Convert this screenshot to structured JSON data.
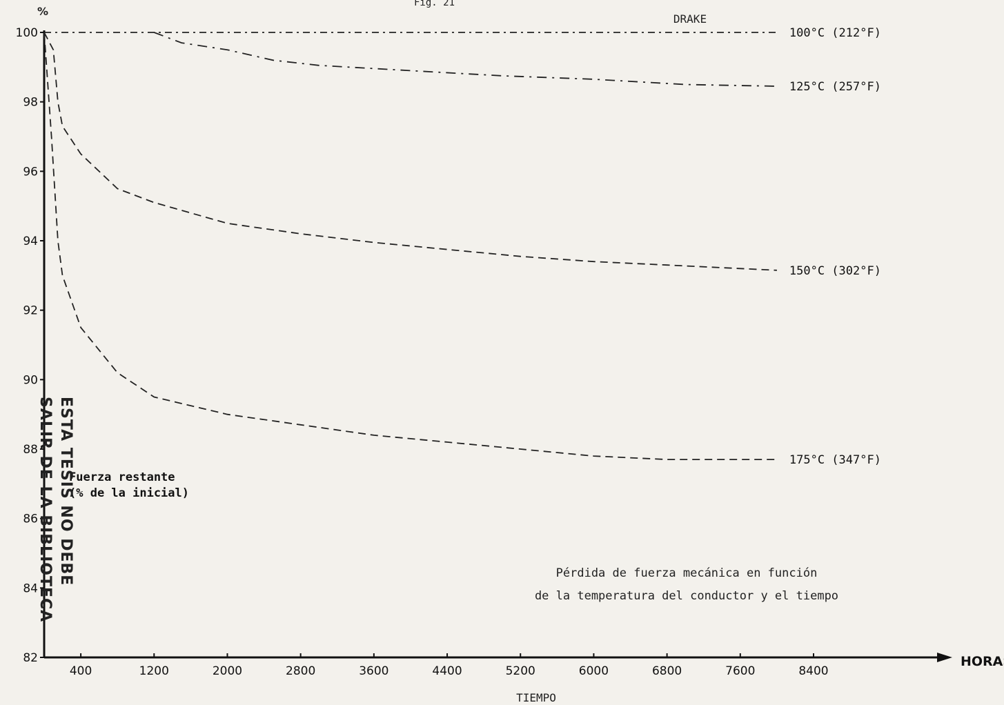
{
  "header": {
    "figure_label": "Fig. 21"
  },
  "chart_data": {
    "type": "line",
    "title": "DRAKE",
    "caption": [
      "Pérdida de fuerza mecánica en función",
      "de la temperatura del conductor y el tiempo"
    ],
    "ylabel": [
      "Fuerza restante",
      "(% de la inicial)"
    ],
    "y_unit": "%",
    "xlabel": "TIEMPO",
    "x_unit": "HORAS",
    "xlim": [
      0,
      10500
    ],
    "ylim": [
      82,
      100.3
    ],
    "x_ticks": [
      400,
      1200,
      2000,
      2800,
      3600,
      4400,
      5200,
      6000,
      6800,
      7600,
      8400
    ],
    "y_ticks": [
      82,
      84,
      86,
      88,
      90,
      92,
      94,
      96,
      98,
      100
    ],
    "grid": false,
    "series": [
      {
        "name": "100°C (212°F)",
        "x": [
          0,
          8000
        ],
        "y": [
          100.0,
          100.0
        ]
      },
      {
        "name": "125°C (257°F)",
        "x": [
          1200,
          1500,
          2000,
          2500,
          3000,
          4000,
          5000,
          6000,
          7000,
          8000
        ],
        "y": [
          100.0,
          99.7,
          99.5,
          99.2,
          99.05,
          98.9,
          98.75,
          98.65,
          98.5,
          98.45
        ]
      },
      {
        "name": "150°C (302°F)",
        "x": [
          0,
          100,
          150,
          200,
          400,
          800,
          1200,
          2000,
          2800,
          3600,
          4400,
          5200,
          6000,
          6800,
          7600,
          8000
        ],
        "y": [
          100.0,
          99.5,
          98.0,
          97.3,
          96.5,
          95.5,
          95.1,
          94.5,
          94.2,
          93.95,
          93.75,
          93.55,
          93.4,
          93.3,
          93.2,
          93.15
        ]
      },
      {
        "name": "175°C (347°F)",
        "x": [
          0,
          80,
          150,
          200,
          400,
          800,
          1200,
          2000,
          2800,
          3600,
          4400,
          5200,
          6000,
          6800,
          7600,
          8000
        ],
        "y": [
          100.0,
          97.0,
          94.0,
          93.0,
          91.5,
          90.2,
          89.5,
          89.0,
          88.7,
          88.4,
          88.2,
          88.0,
          87.8,
          87.7,
          87.7,
          87.7
        ]
      }
    ]
  },
  "stamp": {
    "lines": [
      "ESTA TESIS NO DEBE",
      "SALIR DE LA BIBLIOTECA"
    ]
  }
}
